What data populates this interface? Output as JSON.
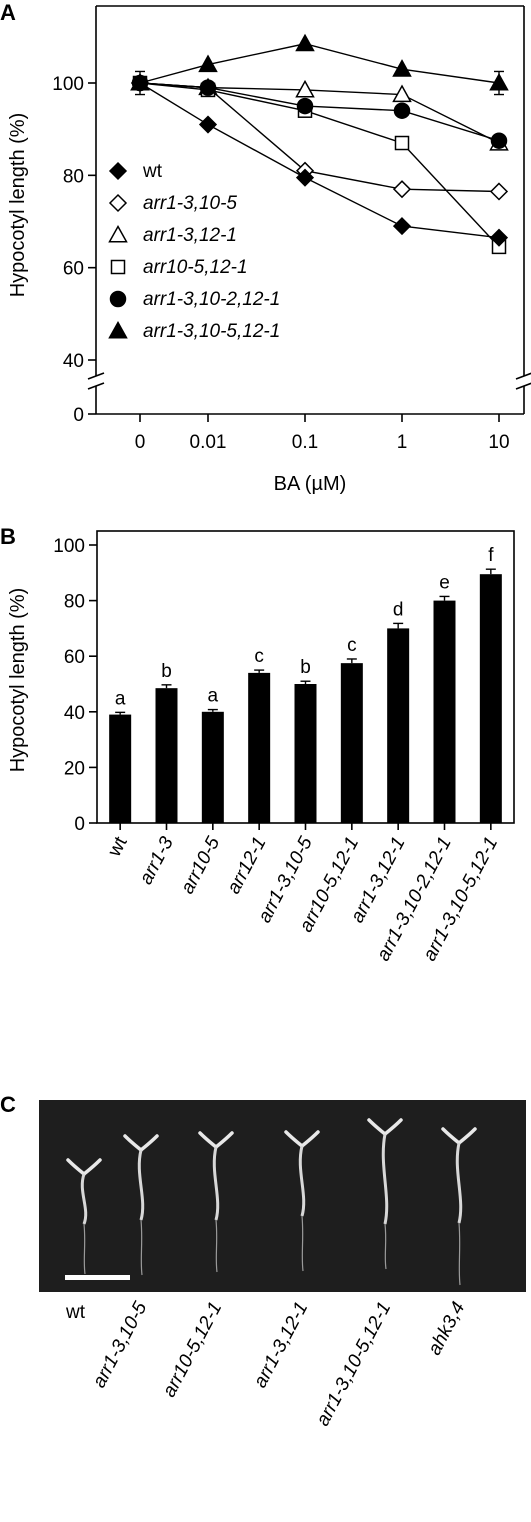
{
  "panels": {
    "a": "A",
    "b": "B",
    "c": "C"
  },
  "chart_data": [
    {
      "panel": "A",
      "type": "line",
      "ylabel": "Hypocotyl length (%)",
      "xlabel": "BA (µM)",
      "x_categories": [
        "0",
        "0.01",
        "0.1",
        "1",
        "10"
      ],
      "y_ticks": [
        "40",
        "60",
        "80",
        "100"
      ],
      "y_zero_tick": "0",
      "ylim": [
        40,
        115
      ],
      "axis_break": true,
      "legend_position": "bottom-left",
      "series": [
        {
          "name": "wt",
          "marker": "diamond-filled",
          "values": [
            100,
            91,
            79.5,
            69,
            66.5
          ]
        },
        {
          "name": "arr1-3,10-5",
          "marker": "diamond-open",
          "values": [
            100,
            99,
            81,
            77,
            76.5
          ]
        },
        {
          "name": "arr1-3,12-1",
          "marker": "triangle-open",
          "values": [
            100,
            99,
            98.5,
            97.5,
            87
          ]
        },
        {
          "name": "arr10-5,12-1",
          "marker": "square-open",
          "values": [
            100,
            98.5,
            94,
            87,
            64.5
          ]
        },
        {
          "name": "arr1-3,10-2,12-1",
          "marker": "circle-filled",
          "values": [
            100,
            99,
            95,
            94,
            87.5
          ]
        },
        {
          "name": "arr1-3,10-5,12-1",
          "marker": "triangle-filled",
          "values": [
            100,
            104,
            108.5,
            103,
            100
          ]
        }
      ],
      "error": {
        "first_point": 2.5,
        "last_triangle": 2.5
      }
    },
    {
      "panel": "B",
      "type": "bar",
      "ylabel": "Hypocotyl length (%)",
      "categories": [
        "wt",
        "arr1-3",
        "arr10-5",
        "arr12-1",
        "arr1-3,10-5",
        "arr10-5,12-1",
        "arr1-3,12-1",
        "arr1-3,10-2,12-1",
        "arr1-3,10-5,12-1"
      ],
      "values": [
        39,
        48.5,
        40,
        54,
        50,
        57.5,
        70,
        80,
        89.5
      ],
      "errors": [
        0.8,
        1.2,
        0.8,
        1.0,
        1.0,
        1.5,
        1.8,
        1.5,
        1.8
      ],
      "letters": [
        "a",
        "b",
        "a",
        "c",
        "b",
        "c",
        "d",
        "e",
        "f"
      ],
      "y_ticks": [
        "0",
        "20",
        "40",
        "60",
        "80",
        "100"
      ],
      "ylim": [
        0,
        100
      ]
    }
  ],
  "panel_c": {
    "labels": [
      "wt",
      "arr1-3,10-5",
      "arr10-5,12-1",
      "arr1-3,12-1",
      "arr1-3,10-5,12-1",
      "ahk3,4"
    ]
  }
}
